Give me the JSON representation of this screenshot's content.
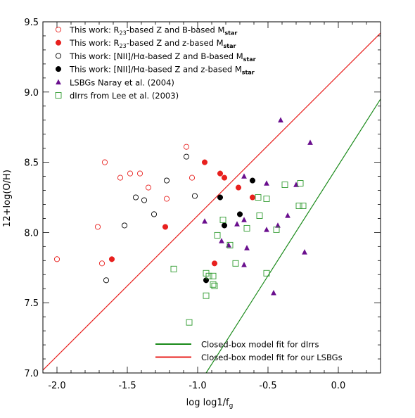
{
  "chart_data": {
    "type": "scatter",
    "title": "",
    "xlabel": "log log1/f",
    "xlabel_sub": "g",
    "ylabel": "12+log(O/H)",
    "xlim": [
      -2.1,
      0.3
    ],
    "ylim": [
      7.0,
      9.5
    ],
    "x_ticks": [
      -2.0,
      -1.5,
      -1.0,
      -0.5,
      0.0
    ],
    "x_tick_labels": [
      "-2.0",
      "-1.5",
      "-1.0",
      "-0.5",
      "0.0"
    ],
    "y_ticks": [
      7.0,
      7.5,
      8.0,
      8.5,
      9.0,
      9.5
    ],
    "y_tick_labels": [
      "7.0",
      "7.5",
      "8.0",
      "8.5",
      "9.0",
      "9.5"
    ],
    "grid": false,
    "legend_position": "top-left",
    "series": [
      {
        "name": "This work: R23-based Z and B-based Mstar",
        "legend": {
          "pre": "This work: R",
          "sub1": "23",
          "mid": "-based Z and B-based M",
          "sub2": "star"
        },
        "marker": "circle-open",
        "color": "#e8201e",
        "points": [
          [
            -2.0,
            7.81
          ],
          [
            -1.71,
            8.04
          ],
          [
            -1.68,
            7.78
          ],
          [
            -1.66,
            8.5
          ],
          [
            -1.55,
            8.39
          ],
          [
            -1.48,
            8.42
          ],
          [
            -1.41,
            8.42
          ],
          [
            -1.35,
            8.32
          ],
          [
            -1.22,
            8.24
          ],
          [
            -1.08,
            8.61
          ],
          [
            -1.04,
            8.39
          ]
        ]
      },
      {
        "name": "This work: R23-based Z and z-based Mstar",
        "legend": {
          "pre": "This work: R",
          "sub1": "23",
          "mid": "-based Z and z-based M",
          "sub2": "star"
        },
        "marker": "circle-filled",
        "color": "#e8201e",
        "points": [
          [
            -1.61,
            7.81
          ],
          [
            -1.23,
            8.04
          ],
          [
            -0.95,
            8.5
          ],
          [
            -0.84,
            8.42
          ],
          [
            -0.81,
            8.39
          ],
          [
            -0.71,
            8.32
          ],
          [
            -0.88,
            7.78
          ],
          [
            -0.61,
            8.25
          ]
        ]
      },
      {
        "name": "This work: [NII]/Hα-based Z and B-based Mstar",
        "legend": {
          "pre": "This work: [NII]/Hα-based Z and B-based M",
          "sub1": "",
          "mid": "",
          "sub2": "star"
        },
        "marker": "circle-open",
        "color": "#000000",
        "points": [
          [
            -1.65,
            7.66
          ],
          [
            -1.52,
            8.05
          ],
          [
            -1.44,
            8.25
          ],
          [
            -1.38,
            8.23
          ],
          [
            -1.31,
            8.13
          ],
          [
            -1.22,
            8.37
          ],
          [
            -1.08,
            8.54
          ],
          [
            -1.02,
            8.26
          ]
        ]
      },
      {
        "name": "This work: [NII]/Hα-based Z and z-based Mstar",
        "legend": {
          "pre": "This work: [NII]/Hα-based Z and z-based M",
          "sub1": "",
          "mid": "",
          "sub2": "star"
        },
        "marker": "circle-filled",
        "color": "#000000",
        "points": [
          [
            -0.94,
            7.66
          ],
          [
            -0.84,
            8.25
          ],
          [
            -0.81,
            8.05
          ],
          [
            -0.7,
            8.13
          ],
          [
            -0.61,
            8.37
          ]
        ]
      },
      {
        "name": "LSBGs Naray et al. (2004)",
        "legend": {
          "pre": "LSBGs Naray et al. (2004)",
          "sub1": "",
          "mid": "",
          "sub2": ""
        },
        "marker": "triangle-filled",
        "color": "#6a0f8e",
        "points": [
          [
            -0.41,
            8.8
          ],
          [
            -0.2,
            8.64
          ],
          [
            -0.67,
            8.4
          ],
          [
            -0.51,
            8.35
          ],
          [
            -0.3,
            8.34
          ],
          [
            -0.95,
            8.08
          ],
          [
            -0.72,
            8.06
          ],
          [
            -0.67,
            8.09
          ],
          [
            -0.51,
            8.02
          ],
          [
            -0.43,
            8.05
          ],
          [
            -0.36,
            8.12
          ],
          [
            -0.83,
            7.94
          ],
          [
            -0.78,
            7.91
          ],
          [
            -0.65,
            7.89
          ],
          [
            -0.67,
            7.77
          ],
          [
            -0.24,
            7.86
          ],
          [
            -0.46,
            7.57
          ]
        ]
      },
      {
        "name": "dIrrs from Lee et al. (2003)",
        "legend": {
          "pre": "dIrrs from Lee et al. (2003)",
          "sub1": "",
          "mid": "",
          "sub2": ""
        },
        "marker": "square-open",
        "color": "#2e9a2e",
        "points": [
          [
            -0.57,
            8.25
          ],
          [
            -0.51,
            8.24
          ],
          [
            -0.38,
            8.34
          ],
          [
            -0.27,
            8.35
          ],
          [
            -0.28,
            8.19
          ],
          [
            -0.25,
            8.19
          ],
          [
            -0.82,
            8.09
          ],
          [
            -0.56,
            8.12
          ],
          [
            -0.65,
            8.03
          ],
          [
            -0.44,
            8.02
          ],
          [
            -0.86,
            7.98
          ],
          [
            -0.77,
            7.91
          ],
          [
            -1.17,
            7.74
          ],
          [
            -0.94,
            7.71
          ],
          [
            -0.92,
            7.69
          ],
          [
            -0.89,
            7.69
          ],
          [
            -0.73,
            7.78
          ],
          [
            -0.51,
            7.71
          ],
          [
            -0.89,
            7.63
          ],
          [
            -0.88,
            7.62
          ],
          [
            -0.94,
            7.55
          ],
          [
            -1.06,
            7.36
          ]
        ]
      }
    ],
    "lines": [
      {
        "name": "Closed-box model fit for dIrrs",
        "color": "#1a8a1a",
        "points": [
          [
            -0.94,
            7.0
          ],
          [
            0.3,
            8.95
          ]
        ]
      },
      {
        "name": "Closed-box model fit for our LSBGs",
        "color": "#e8201e",
        "points": [
          [
            -2.1,
            7.02
          ],
          [
            0.3,
            9.42
          ]
        ]
      }
    ],
    "bottom_legend": [
      "Closed-box model fit for dIrrs",
      "Closed-box model fit for our LSBGs"
    ]
  }
}
